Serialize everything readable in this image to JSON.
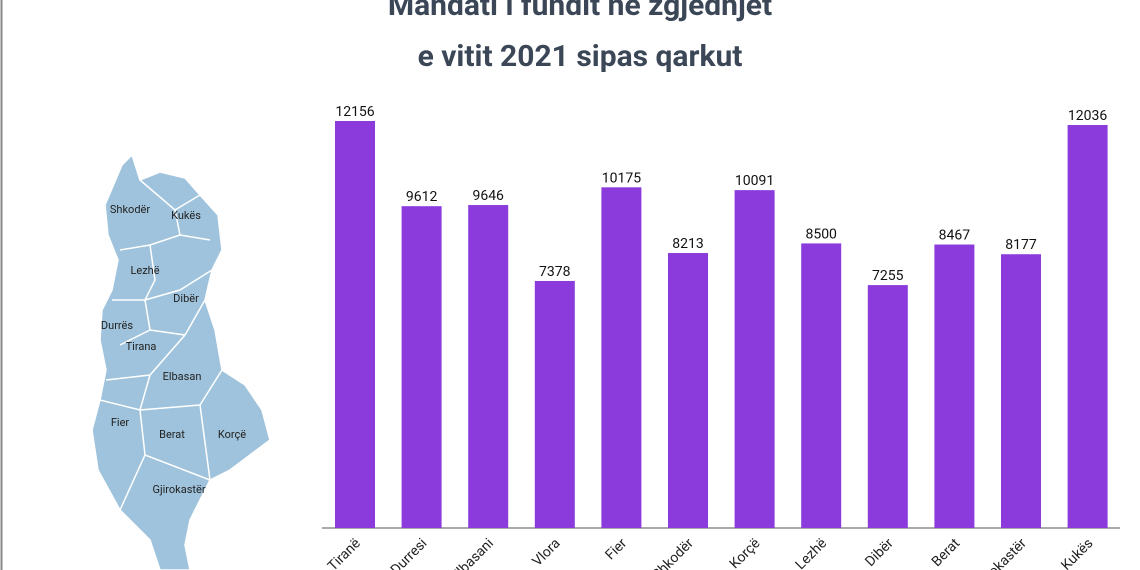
{
  "chart_data": {
    "type": "bar",
    "title": [
      "Mandati i fundit në zgjedhjet",
      "e vitit 2021 sipas qarkut"
    ],
    "categories": [
      "Tiranë",
      "Durresi",
      "Elbasani",
      "Vlora",
      "Fier",
      "Shkodër",
      "Korçë",
      "Lezhë",
      "Dibër",
      "Berat",
      "Gjirokastër",
      "Kukës"
    ],
    "values": [
      12156,
      9612,
      9646,
      7378,
      10175,
      8213,
      10091,
      8500,
      7255,
      8467,
      8177,
      12036
    ],
    "color": "#8b3bdb"
  },
  "map": {
    "labels": [
      "Shkodër",
      "Kukës",
      "Lezhë",
      "Dibër",
      "Durrës",
      "Tirana",
      "Elbasan",
      "Fier",
      "Berat",
      "Korçë",
      "Gjirokastër"
    ]
  }
}
